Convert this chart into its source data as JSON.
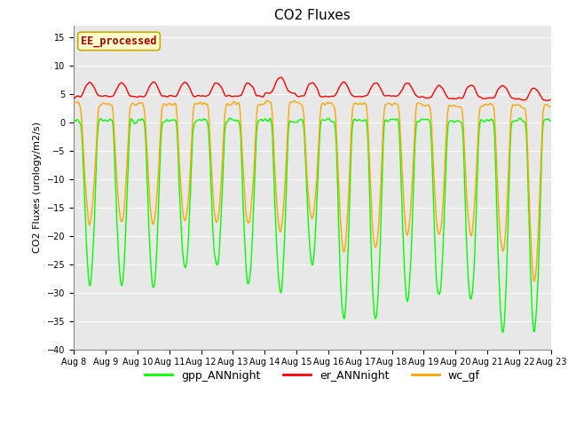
{
  "title": "CO2 Fluxes",
  "ylabel": "CO2 Fluxes (urology/m2/s)",
  "xlabel": "",
  "ylim": [
    -40,
    17
  ],
  "yticks": [
    -40,
    -35,
    -30,
    -25,
    -20,
    -15,
    -10,
    -5,
    0,
    5,
    10,
    15
  ],
  "start_day": 8,
  "end_day": 23,
  "n_days": 15,
  "points_per_day": 48,
  "colors": {
    "gpp": "#00ff00",
    "er": "#ff0000",
    "wc": "#ffa500"
  },
  "legend_labels": [
    "gpp_ANNnight",
    "er_ANNnight",
    "wc_gf"
  ],
  "annotation": "EE_processed",
  "annotation_color": "#aa0000",
  "annotation_bg": "#ffffcc",
  "fig_facecolor": "#ffffff",
  "plot_bg": "#e8e8e8",
  "grid_color": "#ffffff",
  "title_fontsize": 11,
  "label_fontsize": 8,
  "tick_fontsize": 7,
  "legend_fontsize": 9
}
